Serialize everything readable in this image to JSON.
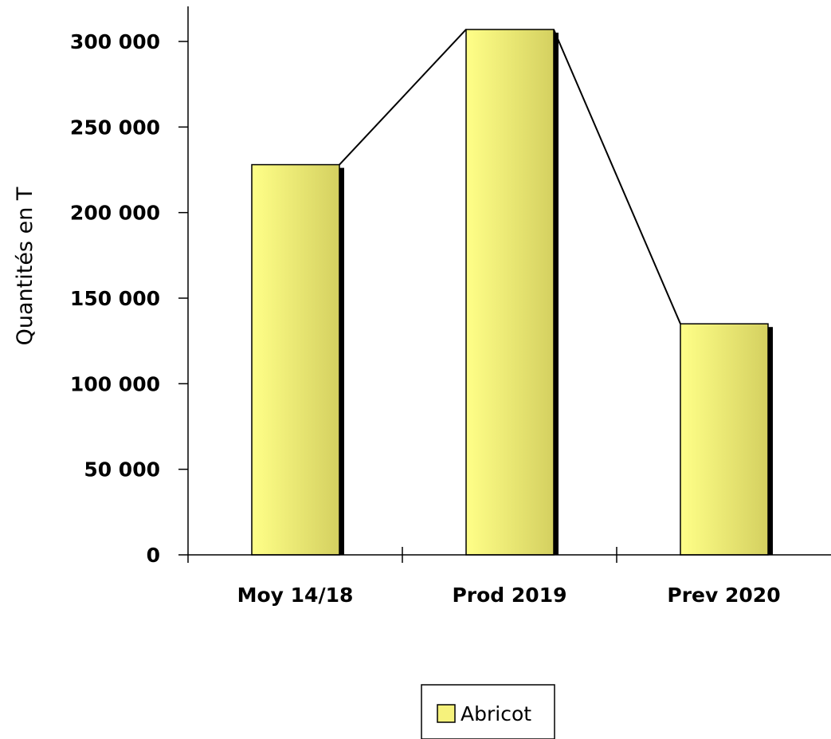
{
  "chart_data": {
    "type": "bar",
    "categories": [
      "Moy 14/18",
      "Prod 2019",
      "Prev 2020"
    ],
    "series": [
      {
        "name": "Abricot",
        "values": [
          228000,
          307000,
          135000
        ]
      }
    ],
    "connector_line": true,
    "ylabel": "Quantités en T",
    "ylim": [
      0,
      300000
    ],
    "y_ticks": [
      0,
      50000,
      100000,
      150000,
      200000,
      250000,
      300000
    ],
    "y_tick_labels": [
      "0",
      "50 000",
      "100 000",
      "150 000",
      "200 000",
      "250 000",
      "300 000"
    ],
    "grid": false,
    "legend": "bottom-center",
    "colors": {
      "bar_light": "#ffff88",
      "bar_dark": "#d4d060",
      "bar_shadow": "#000000",
      "line": "#000000"
    }
  }
}
